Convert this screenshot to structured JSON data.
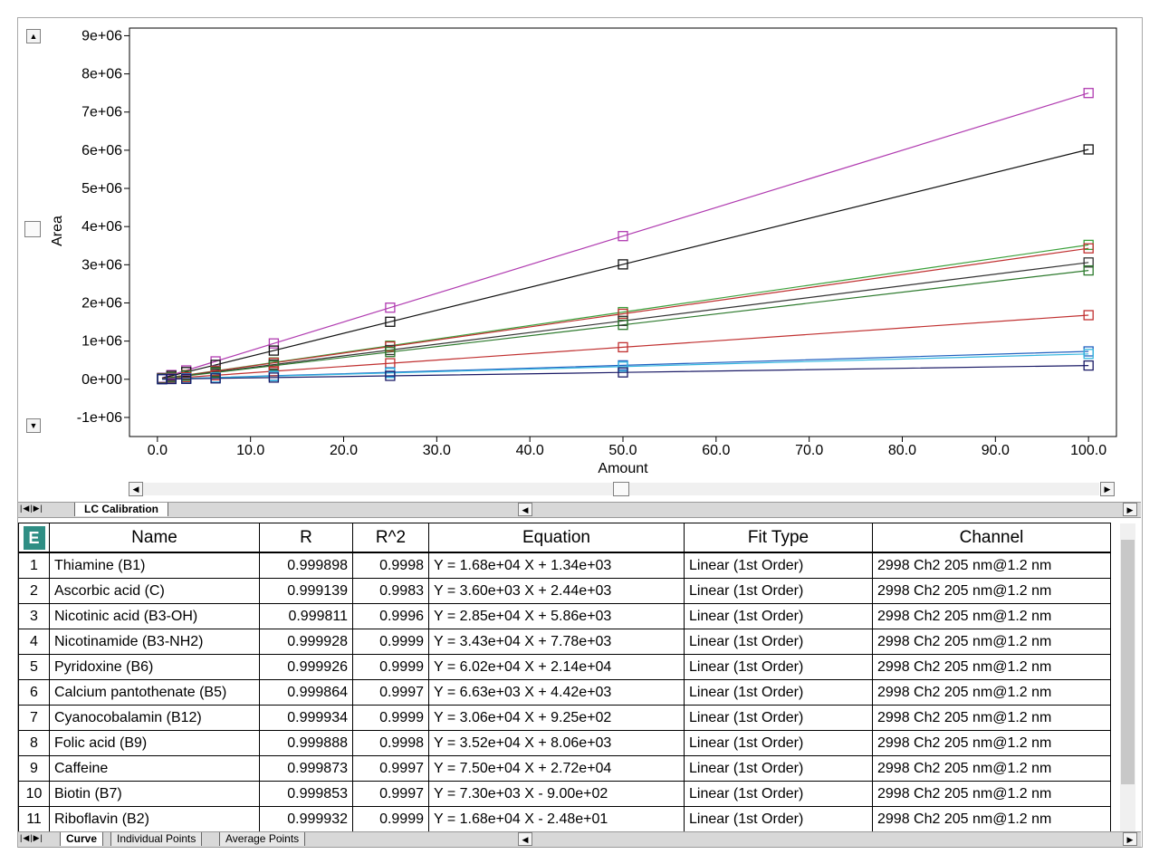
{
  "chart_data": {
    "type": "line",
    "xlabel": "Amount",
    "ylabel": "Area",
    "xlim": [
      -3,
      103
    ],
    "ylim": [
      -1500000,
      9200000
    ],
    "xticks": [
      "0.0",
      "10.0",
      "20.0",
      "30.0",
      "40.0",
      "50.0",
      "60.0",
      "70.0",
      "80.0",
      "90.0",
      "100.0"
    ],
    "xtick_values": [
      0,
      10,
      20,
      30,
      40,
      50,
      60,
      70,
      80,
      90,
      100
    ],
    "yticks": [
      "9e+06",
      "8e+06",
      "7e+06",
      "6e+06",
      "5e+06",
      "4e+06",
      "3e+06",
      "2e+06",
      "1e+06",
      "0e+00",
      "-1e+06"
    ],
    "ytick_values": [
      9000000,
      8000000,
      7000000,
      6000000,
      5000000,
      4000000,
      3000000,
      2000000,
      1000000,
      0,
      -1000000
    ],
    "x": [
      0.5,
      1.5,
      3.1,
      6.25,
      12.5,
      25,
      50,
      100
    ],
    "series": [
      {
        "color": "#b03bb0",
        "values": [
          37000,
          112000,
          233000,
          469000,
          938000,
          1876000,
          3750000,
          7500000
        ]
      },
      {
        "color": "#111111",
        "values": [
          30000,
          90000,
          190000,
          376000,
          752000,
          1505000,
          3010000,
          6020000
        ]
      },
      {
        "color": "#3aa03a",
        "values": [
          17600,
          53000,
          110000,
          220000,
          440000,
          880000,
          1760000,
          3520000
        ]
      },
      {
        "color": "#c03030",
        "values": [
          17200,
          51000,
          107000,
          214000,
          429000,
          858000,
          1715000,
          3430000
        ]
      },
      {
        "color": "#333333",
        "values": [
          15300,
          46000,
          96000,
          191000,
          383000,
          765000,
          1530000,
          3060000
        ]
      },
      {
        "color": "#2d7a2d",
        "values": [
          14300,
          43000,
          89000,
          178000,
          356000,
          713000,
          1425000,
          2850000
        ]
      },
      {
        "color": "#c03030",
        "values": [
          8400,
          25000,
          52000,
          105000,
          210000,
          420000,
          840000,
          1680000
        ]
      },
      {
        "color": "#1f5fbf",
        "values": [
          3600,
          11000,
          23000,
          45000,
          91000,
          182000,
          365000,
          730000
        ]
      },
      {
        "color": "#35b8e0",
        "values": [
          3300,
          10000,
          21000,
          41000,
          83000,
          166000,
          331000,
          663000
        ]
      },
      {
        "color": "#1a1a66",
        "values": [
          1800,
          5400,
          11000,
          22000,
          45000,
          90000,
          180000,
          360000
        ]
      }
    ]
  },
  "tabs_top": {
    "active": "LC Calibration"
  },
  "tabs_bottom": [
    "Curve",
    "Individual Points",
    "Average Points"
  ],
  "table": {
    "corner_icon": "E",
    "columns": [
      "Name",
      "R",
      "R^2",
      "Equation",
      "Fit Type",
      "Channel"
    ],
    "rows": [
      {
        "idx": "1",
        "name": "Thiamine (B1)",
        "r": "0.999898",
        "r2": "0.9998",
        "eq": "Y = 1.68e+04 X + 1.34e+03",
        "fit": "Linear (1st Order)",
        "channel": "2998 Ch2 205 nm@1.2 nm"
      },
      {
        "idx": "2",
        "name": "Ascorbic acid (C)",
        "r": "0.999139",
        "r2": "0.9983",
        "eq": "Y = 3.60e+03 X + 2.44e+03",
        "fit": "Linear (1st Order)",
        "channel": "2998 Ch2 205 nm@1.2 nm"
      },
      {
        "idx": "3",
        "name": "Nicotinic acid (B3-OH)",
        "r": "0.999811",
        "r2": "0.9996",
        "eq": "Y = 2.85e+04 X + 5.86e+03",
        "fit": "Linear (1st Order)",
        "channel": "2998 Ch2 205 nm@1.2 nm"
      },
      {
        "idx": "4",
        "name": "Nicotinamide (B3-NH2)",
        "r": "0.999928",
        "r2": "0.9999",
        "eq": "Y = 3.43e+04 X + 7.78e+03",
        "fit": "Linear (1st Order)",
        "channel": "2998 Ch2 205 nm@1.2 nm"
      },
      {
        "idx": "5",
        "name": "Pyridoxine (B6)",
        "r": "0.999926",
        "r2": "0.9999",
        "eq": "Y = 6.02e+04 X + 2.14e+04",
        "fit": "Linear (1st Order)",
        "channel": "2998 Ch2 205 nm@1.2 nm"
      },
      {
        "idx": "6",
        "name": "Calcium pantothenate (B5)",
        "r": "0.999864",
        "r2": "0.9997",
        "eq": "Y = 6.63e+03 X + 4.42e+03",
        "fit": "Linear (1st Order)",
        "channel": "2998 Ch2 205 nm@1.2 nm"
      },
      {
        "idx": "7",
        "name": "Cyanocobalamin (B12)",
        "r": "0.999934",
        "r2": "0.9999",
        "eq": "Y = 3.06e+04 X + 9.25e+02",
        "fit": "Linear (1st Order)",
        "channel": "2998 Ch2 205 nm@1.2 nm"
      },
      {
        "idx": "8",
        "name": "Folic acid (B9)",
        "r": "0.999888",
        "r2": "0.9998",
        "eq": "Y = 3.52e+04 X + 8.06e+03",
        "fit": "Linear (1st Order)",
        "channel": "2998 Ch2 205 nm@1.2 nm"
      },
      {
        "idx": "9",
        "name": "Caffeine",
        "r": "0.999873",
        "r2": "0.9997",
        "eq": "Y = 7.50e+04 X + 2.72e+04",
        "fit": "Linear (1st Order)",
        "channel": "2998 Ch2 205 nm@1.2 nm"
      },
      {
        "idx": "10",
        "name": "Biotin (B7)",
        "r": "0.999853",
        "r2": "0.9997",
        "eq": "Y = 7.30e+03 X - 9.00e+02",
        "fit": "Linear (1st Order)",
        "channel": "2998 Ch2 205 nm@1.2 nm"
      },
      {
        "idx": "11",
        "name": "Riboflavin (B2)",
        "r": "0.999932",
        "r2": "0.9999",
        "eq": "Y = 1.68e+04 X - 2.48e+01",
        "fit": "Linear (1st Order)",
        "channel": "2998 Ch2 205 nm@1.2 nm"
      }
    ]
  }
}
